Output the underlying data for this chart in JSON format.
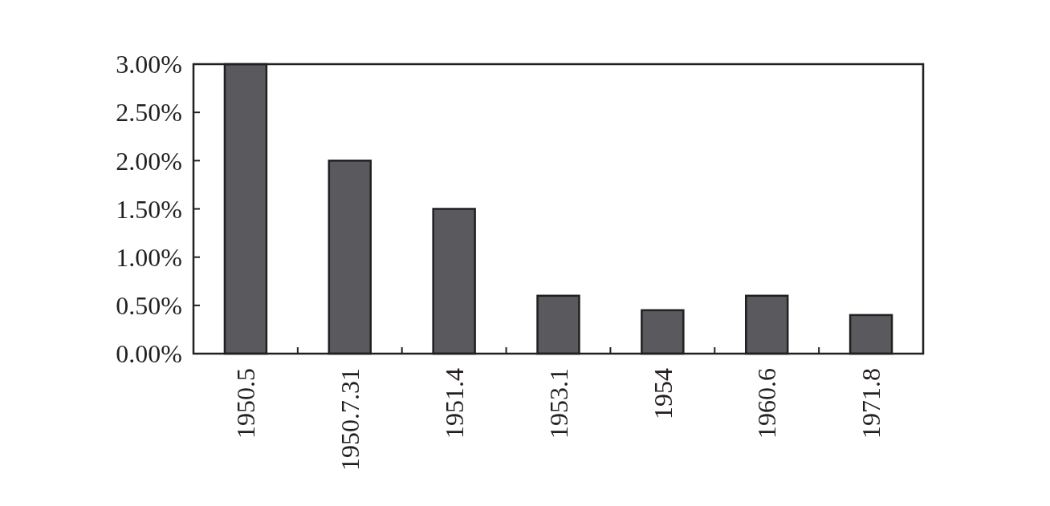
{
  "chart_data": {
    "type": "bar",
    "categories": [
      "1950.5",
      "1950.7.31",
      "1951.4",
      "1953.1",
      "1954",
      "1960.6",
      "1971.8"
    ],
    "values": [
      3.0,
      2.0,
      1.5,
      0.6,
      0.45,
      0.6,
      0.4
    ],
    "color": "#5a5a5e",
    "ylim": [
      0,
      3
    ],
    "yticks": [
      {
        "value": 0,
        "label": "0.00%"
      },
      {
        "value": 0.5,
        "label": "0.50%"
      },
      {
        "value": 1,
        "label": "1.00%"
      },
      {
        "value": 1.5,
        "label": "1.50%"
      },
      {
        "value": 2,
        "label": "2.00%"
      },
      {
        "value": 2.5,
        "label": "2.50%"
      },
      {
        "value": 3,
        "label": "3.00%"
      }
    ],
    "grid": false
  }
}
